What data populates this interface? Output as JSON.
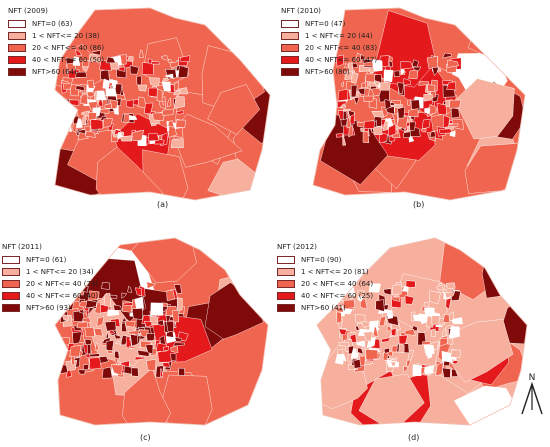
{
  "colors": {
    "class0": "#ffffff",
    "class1": "#f7b09e",
    "class2": "#f0654f",
    "class3": "#e3191c",
    "class4": "#7f0a0a",
    "border": "#ffffff"
  },
  "panels": [
    {
      "id": "a",
      "legend_title": "NFT (2009)",
      "legend_items": [
        "NFT=0 (63)",
        "1 < NFT<= 20 (38)",
        "20 < NFT<= 40 (86)",
        "40 < NFT<= 60 (50)",
        "NFT>60  (64)"
      ],
      "caption": "(a)",
      "base_class": "class2"
    },
    {
      "id": "b",
      "legend_title": "NFT (2010)",
      "legend_items": [
        "NFT=0 (47)",
        "1 < NFT<= 20 (44)",
        "20 < NFT<= 40 (83)",
        "40 < NFT<= 60 (47)",
        "NFT>60  (80)"
      ],
      "caption": "(b)",
      "base_class": "class2"
    },
    {
      "id": "c",
      "legend_title": "NFT (2011)",
      "legend_items": [
        "NFT=0 (61)",
        "1 < NFT<= 20 (34)",
        "20 < NFT<= 40 (73)",
        "40 < NFT<= 60 (40)",
        "NFT>60  (93)"
      ],
      "caption": "(c)",
      "base_class": "class2"
    },
    {
      "id": "d",
      "legend_title": "NFT (2012)",
      "legend_items": [
        "NFT=0 (90)",
        "1 < NFT<= 20 (81)",
        "20 < NFT<= 40 (64)",
        "40 < NFT<= 60 (25)",
        "NFT>60  (41)"
      ],
      "caption": "(d)",
      "base_class": "class1"
    }
  ],
  "north_arrow": {
    "label": "N"
  }
}
